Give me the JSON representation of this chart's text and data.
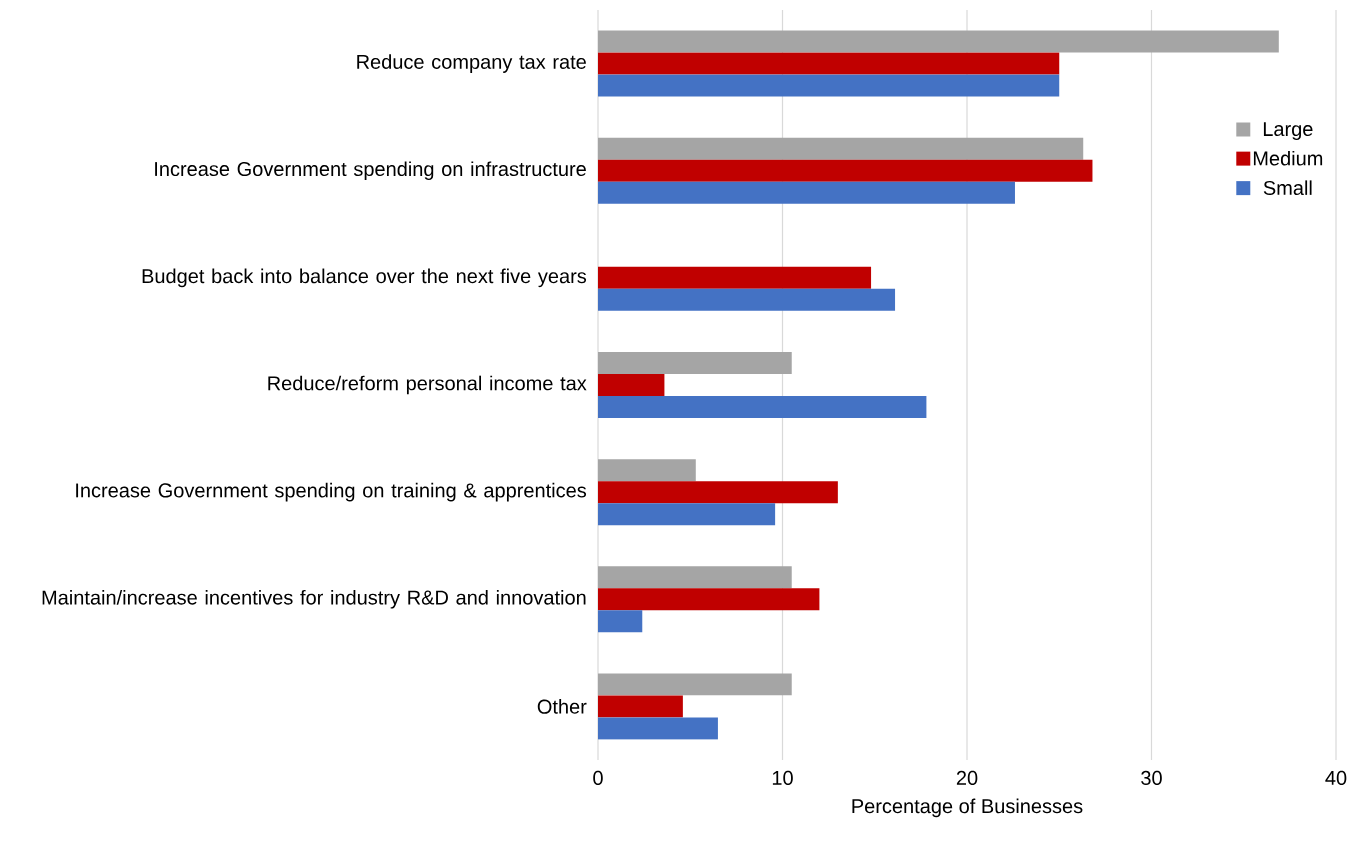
{
  "chart_data": {
    "type": "bar",
    "orientation": "horizontal",
    "xlabel": "Percentage of Businesses",
    "categories": [
      "Reduce company tax rate",
      "Increase Government spending on infrastructure",
      "Budget back into balance over the next five years",
      "Reduce/reform personal income tax",
      "Increase Government spending on training & apprentices",
      "Maintain/increase incentives for industry R&D and innovation",
      "Other"
    ],
    "series": [
      {
        "name": "Large",
        "color": "#a5a5a5",
        "values": [
          36.9,
          26.3,
          null,
          10.5,
          5.3,
          10.5,
          10.5
        ]
      },
      {
        "name": "Medium",
        "color": "#c00000",
        "values": [
          25.0,
          26.8,
          14.8,
          3.6,
          13.0,
          12.0,
          4.6
        ]
      },
      {
        "name": "Small",
        "color": "#4472c4",
        "values": [
          25.0,
          22.6,
          16.1,
          17.8,
          9.6,
          2.4,
          6.5
        ]
      }
    ],
    "xlim": [
      0,
      40
    ],
    "xticks": [
      0,
      10,
      20,
      30,
      40
    ],
    "grid": "x",
    "legend": "right"
  }
}
